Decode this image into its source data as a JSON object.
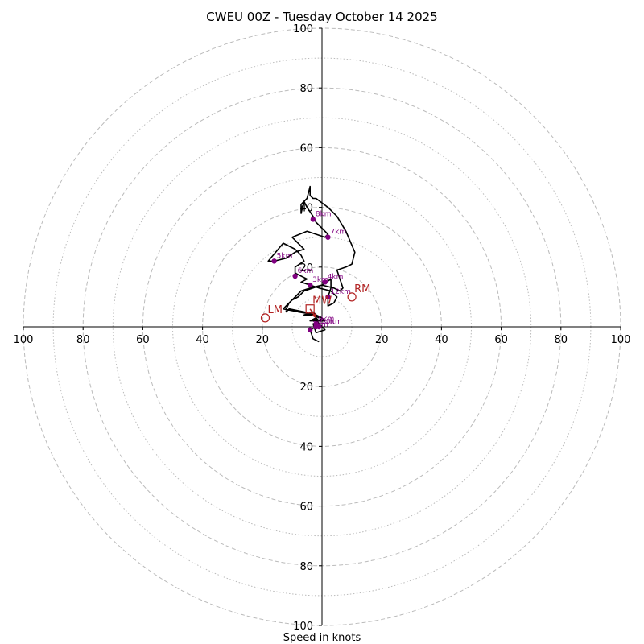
{
  "chart_data": {
    "type": "hodograph",
    "title": "CWEU 00Z - Tuesday October 14 2025",
    "xlabel": "Speed in knots",
    "axis_range_knots": [
      -100,
      100
    ],
    "major_ring_step": 20,
    "minor_ring_step": 10,
    "tick_labels": {
      "x": [
        "100",
        "80",
        "60",
        "40",
        "20",
        "20",
        "40",
        "60",
        "80",
        "100"
      ],
      "y": [
        "100",
        "80",
        "60",
        "40",
        "20",
        "20",
        "40",
        "60",
        "80",
        "100"
      ]
    },
    "wind_trace_uv_kt": [
      [
        -1,
        -5
      ],
      [
        -3,
        -4
      ],
      [
        -4,
        -1
      ],
      [
        -2,
        0
      ],
      [
        -3,
        1
      ],
      [
        -1,
        2
      ],
      [
        -4,
        2
      ],
      [
        -2,
        3
      ],
      [
        -1,
        2
      ],
      [
        0,
        3
      ],
      [
        -2,
        4
      ],
      [
        -2,
        3
      ],
      [
        -1,
        1
      ],
      [
        1,
        -1
      ],
      [
        -2,
        -2
      ],
      [
        -3,
        1
      ],
      [
        -1,
        2
      ],
      [
        -3,
        4
      ],
      [
        -5,
        4
      ],
      [
        -6,
        4
      ],
      [
        -3,
        5
      ],
      [
        -2,
        4
      ],
      [
        -2,
        3
      ],
      [
        -3,
        2
      ],
      [
        -1,
        2
      ],
      [
        1,
        2
      ],
      [
        0,
        3
      ],
      [
        -2,
        4
      ],
      [
        -8,
        5
      ],
      [
        -13,
        6
      ],
      [
        -12,
        7
      ],
      [
        -10,
        9
      ],
      [
        -8,
        10
      ],
      [
        -6,
        12
      ],
      [
        -3,
        13
      ],
      [
        0,
        14
      ],
      [
        3,
        16
      ],
      [
        3,
        13
      ],
      [
        2,
        10
      ],
      [
        2,
        7
      ],
      [
        4,
        8
      ],
      [
        5,
        10
      ],
      [
        3,
        12
      ],
      [
        -1,
        13
      ],
      [
        -4,
        14
      ],
      [
        -7,
        15
      ],
      [
        -5,
        16
      ],
      [
        -9,
        18
      ],
      [
        -9,
        20
      ],
      [
        -6,
        22
      ],
      [
        -7,
        24
      ],
      [
        -9,
        26
      ],
      [
        -13,
        28
      ],
      [
        -18,
        22
      ],
      [
        -16,
        22
      ],
      [
        -12,
        23
      ],
      [
        -9,
        25
      ],
      [
        -6,
        26
      ],
      [
        -9,
        29
      ],
      [
        -10,
        30
      ],
      [
        -5,
        32
      ],
      [
        1,
        30
      ],
      [
        2,
        31
      ],
      [
        -2,
        35
      ],
      [
        -3,
        37
      ],
      [
        -5,
        40
      ],
      [
        -6,
        42
      ],
      [
        -7,
        38
      ],
      [
        -7,
        41
      ],
      [
        -5,
        43
      ],
      [
        -4,
        47
      ],
      [
        -4,
        44
      ],
      [
        -3,
        43
      ],
      [
        -2,
        43
      ],
      [
        2,
        40
      ],
      [
        5,
        37
      ],
      [
        8,
        32
      ],
      [
        11,
        25
      ],
      [
        10,
        21
      ],
      [
        8,
        20
      ],
      [
        5,
        19
      ],
      [
        6,
        16
      ],
      [
        7,
        13
      ],
      [
        6,
        12
      ],
      [
        4,
        13
      ],
      [
        0,
        14
      ],
      [
        -4,
        13
      ],
      [
        -7,
        12
      ],
      [
        -8,
        11
      ],
      [
        -9,
        10
      ],
      [
        -11,
        8
      ],
      [
        -12,
        6
      ],
      [
        -12,
        5
      ],
      [
        -11,
        6
      ],
      [
        -6,
        5
      ],
      [
        -3,
        4
      ],
      [
        -1,
        3
      ]
    ],
    "height_markers": [
      {
        "label": "1km",
        "u": -4,
        "v": -1
      },
      {
        "label": "2km",
        "u": -2,
        "v": 0
      },
      {
        "label": "3km",
        "u": -4,
        "v": 14
      },
      {
        "label": "4km",
        "u": 1,
        "v": 15
      },
      {
        "label": "5km",
        "u": -16,
        "v": 22
      },
      {
        "label": "6km",
        "u": -9,
        "v": 17
      },
      {
        "label": "7km",
        "u": 2,
        "v": 30
      },
      {
        "label": "8km",
        "u": -3,
        "v": 36
      },
      {
        "label": "12km",
        "u": 2,
        "v": 10
      },
      {
        "label": "9km",
        "u": -2,
        "v": 1
      },
      {
        "label": "10km",
        "u": -1,
        "v": 0
      }
    ],
    "storm_motions": [
      {
        "label": "RM",
        "u": 10,
        "v": 10,
        "marker": "circle"
      },
      {
        "label": "LM",
        "u": -19,
        "v": 3,
        "marker": "circle"
      },
      {
        "label": "MW",
        "u": -4,
        "v": 6,
        "marker": "square"
      }
    ],
    "mean_wind_arrow": {
      "from": [
        -4,
        6
      ],
      "to": [
        -2,
        3
      ]
    },
    "colors": {
      "trace": "#000000",
      "markers": "#800080",
      "storm_motion": "#b22222",
      "grid": "#bbbbbb",
      "axes": "#000000"
    }
  }
}
